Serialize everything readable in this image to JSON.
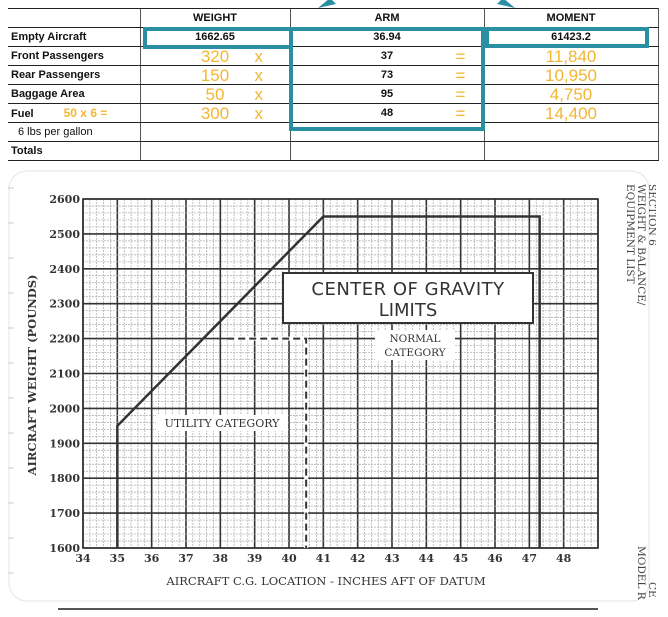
{
  "table": {
    "headers": [
      "",
      "WEIGHT",
      "ARM",
      "MOMENT"
    ],
    "rows": [
      {
        "label": "Empty Aircraft",
        "weight": "1662.65",
        "arm": "36.94",
        "moment": "61423.2",
        "handwritten": false
      },
      {
        "label": "Front Passengers",
        "weight": "320",
        "op1": "x",
        "arm": "37",
        "op2": "=",
        "moment": "11,840",
        "handwritten": true
      },
      {
        "label": "Rear Passengers",
        "weight": "150",
        "op1": "x",
        "arm": "73",
        "op2": "=",
        "moment": "10,950",
        "handwritten": true
      },
      {
        "label": "Baggage Area",
        "weight": "50",
        "op1": "x",
        "arm": "95",
        "op2": "=",
        "moment": "4,750",
        "handwritten": true
      },
      {
        "label": "Fuel",
        "note": "50 x 6 =",
        "weight": "300",
        "op1": "x",
        "arm": "48",
        "op2": "=",
        "moment": "14,400",
        "handwritten": true
      },
      {
        "label": "6 lbs per gallon",
        "weight": "",
        "arm": "",
        "moment": ""
      },
      {
        "label": "Totals",
        "weight": "",
        "arm": "",
        "moment": ""
      }
    ]
  },
  "colors": {
    "annotation_teal": "#2b8fa3",
    "handwriting_yellow": "#f2b632",
    "grid_dark": "#333333",
    "grid_light": "#9a9a9a"
  },
  "chart_data": {
    "type": "line",
    "title": "CENTER OF GRAVITY LIMITS",
    "xlabel": "AIRCRAFT C.G. LOCATION - INCHES AFT OF DATUM",
    "ylabel": "AIRCRAFT WEIGHT (POUNDS)",
    "xlim": [
      34,
      49
    ],
    "ylim": [
      1600,
      2600
    ],
    "x_ticks": [
      "34",
      "35",
      "36",
      "37",
      "38",
      "39",
      "40",
      "41",
      "42",
      "43",
      "44",
      "45",
      "46",
      "47",
      "48"
    ],
    "y_ticks": [
      "1600",
      "1700",
      "1800",
      "1900",
      "2000",
      "2100",
      "2200",
      "2300",
      "2400",
      "2500",
      "2600"
    ],
    "grid": true,
    "series": [
      {
        "name": "Normal Category envelope",
        "style": "solid",
        "points": [
          [
            35,
            1600
          ],
          [
            35,
            1950
          ],
          [
            41,
            2550
          ],
          [
            47.3,
            2550
          ],
          [
            47.3,
            1600
          ]
        ]
      },
      {
        "name": "Utility Category limit",
        "style": "dashed",
        "points": [
          [
            38.2,
            2200
          ],
          [
            40.5,
            2200
          ],
          [
            40.5,
            1600
          ]
        ]
      }
    ],
    "annotations": [
      {
        "text": "NORMAL CATEGORY",
        "x": 43.5,
        "y": 2180
      },
      {
        "text": "UTILITY CATEGORY",
        "x": 37.5,
        "y": 1950
      }
    ],
    "side_text": {
      "right_top": [
        "SECTION 6",
        "WEIGHT & BALANCE/",
        "EQUIPMENT LIST"
      ],
      "right_bottom": [
        "CE",
        "MODEL R"
      ]
    }
  }
}
